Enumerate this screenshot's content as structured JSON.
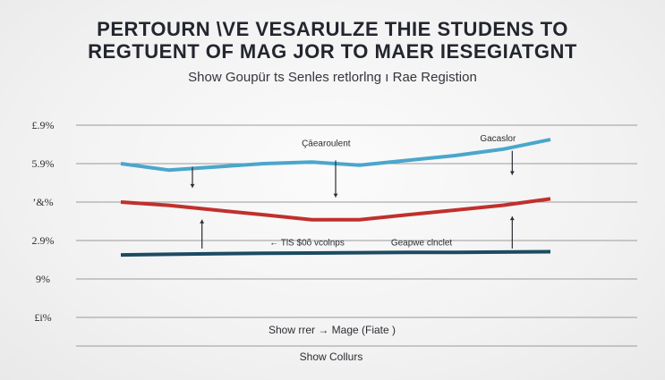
{
  "header": {
    "title_line1": "PERTOURN \\VE VESARULZE THIE STUDENS TO",
    "title_line2": "REGTUENT OF MAG JOR TO MAER IESEGIATGNT",
    "subtitle": "Show Goupür ts Senles retlorlng ı Rae Registion"
  },
  "chart_data": {
    "type": "line",
    "title": "",
    "xlabel": "",
    "ylabel": "",
    "ytick_labels": [
      "£i%",
      "9%",
      "2.9%",
      "’&%",
      "5.9%",
      "£.9%"
    ],
    "grid": true,
    "x": [
      1,
      2,
      3,
      4,
      5,
      6,
      7,
      8,
      9,
      10
    ],
    "ylim": [
      0,
      6
    ],
    "series": [
      {
        "color": "#4aa6cc",
        "values": [
          4.8,
          4.6,
          4.7,
          4.8,
          4.85,
          4.75,
          4.9,
          5.05,
          5.25,
          5.55
        ]
      },
      {
        "color": "#c0302d",
        "values": [
          3.6,
          3.5,
          3.35,
          3.2,
          3.05,
          3.05,
          3.2,
          3.35,
          3.5,
          3.7
        ]
      },
      {
        "color": "#1c4b63",
        "values": [
          1.95,
          1.97,
          1.99,
          2.0,
          2.01,
          2.02,
          2.03,
          2.03,
          2.04,
          2.05
        ]
      }
    ],
    "annotations": [
      {
        "text": "Çāearoulent",
        "x": 5.3,
        "y": 5.35
      },
      {
        "text": "Gacaslor",
        "x": 8.9,
        "y": 5.5
      },
      {
        "text": "← TlS $0õ vcolnps",
        "x": 4.9,
        "y": 2.25
      },
      {
        "text": "Geapwe clnclet",
        "x": 7.3,
        "y": 2.25
      }
    ],
    "xlabel_caption": "Show rrer → Mage (Fiate )",
    "footer_caption": "Show Collurs"
  }
}
